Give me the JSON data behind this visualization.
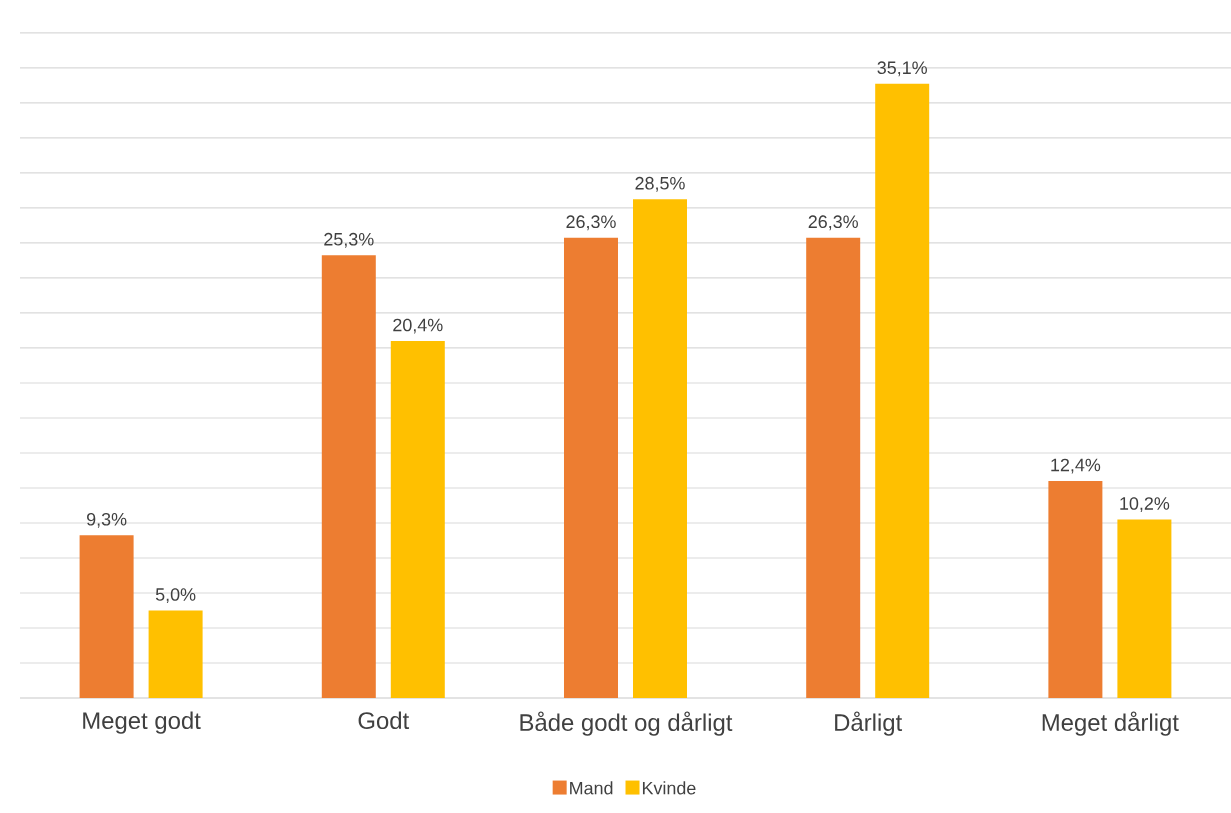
{
  "chart_data": {
    "type": "bar",
    "categories": [
      "Meget godt",
      "Godt",
      "Både godt og dårligt",
      "Dårligt",
      "Meget dårligt"
    ],
    "series": [
      {
        "name": "Mand",
        "color": "#ed7d31",
        "values": [
          9.3,
          25.3,
          26.3,
          26.3,
          12.4
        ],
        "value_labels": [
          "9,3%",
          "25,3%",
          "26,3%",
          "26,3%",
          "12,4%"
        ]
      },
      {
        "name": "Kvinde",
        "color": "#ffc000",
        "values": [
          5.0,
          20.4,
          28.5,
          35.1,
          10.2
        ],
        "value_labels": [
          "5,0%",
          "20,4%",
          "28,5%",
          "35,1%",
          "10,2%"
        ]
      }
    ],
    "tick_labels": "x",
    "grid": "y",
    "legend": "bottom"
  }
}
